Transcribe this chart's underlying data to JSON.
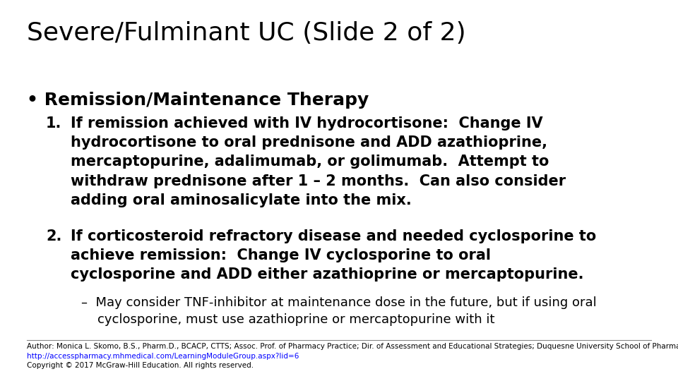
{
  "title": "Severe/Fulminant UC (Slide 2 of 2)",
  "title_fontsize": 26,
  "background_color": "#ffffff",
  "text_color": "#000000",
  "bullet": "• Remission/Maintenance Therapy",
  "bullet_fontsize": 18,
  "item1_label": "1.",
  "item1_text": "If remission achieved with IV hydrocortisone:  Change IV\nhydrocortisone to oral prednisone and ADD azathioprine,\nmercaptopurine, adalimumab, or golimumab.  Attempt to\nwithdraw prednisone after 1 – 2 months.  Can also consider\nadding oral aminosalicylate into the mix.",
  "item2_label": "2.",
  "item2_text": "If corticosteroid refractory disease and needed cyclosporine to\nachieve remission:  Change IV cyclosporine to oral\ncyclosporine and ADD either azathioprine or mercaptopurine.",
  "sub_text": "–  May consider TNF-inhibitor at maintenance dose in the future, but if using oral\n    cyclosporine, must use azathioprine or mercaptopurine with it",
  "footer_line1": "Author: Monica L. Skomo, B.S., Pharm.D., BCACP, CTTS; Assoc. Prof. of Pharmacy Practice; Dir. of Assessment and Educational Strategies; Duquesne University School of Pharmacy",
  "footer_line2": "http://accesspharmacy.mhmedical.com/LearningModuleGroup.aspx?lid=6",
  "footer_line3": "Copyright © 2017 McGraw-Hill Education. All rights reserved.",
  "footer_color": "#000000",
  "link_color": "#0000ff",
  "item_fontsize": 15,
  "sub_fontsize": 13,
  "footer_fontsize": 7.5
}
